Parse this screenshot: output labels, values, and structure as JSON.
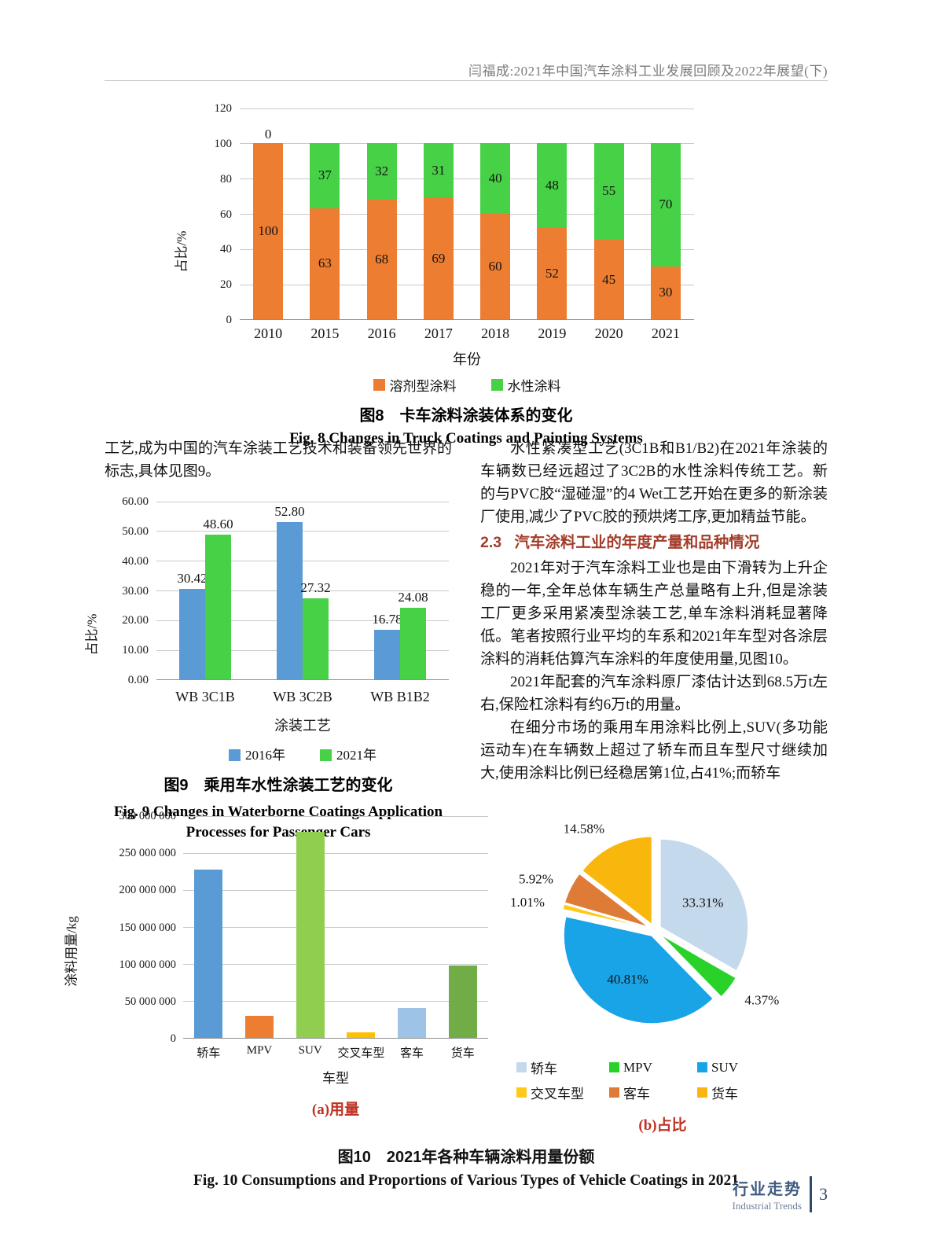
{
  "header": {
    "running_title": "闫福成:2021年中国汽车涂料工业发展回顾及2022年展望(下)"
  },
  "chart_data": [
    {
      "id": "fig8",
      "type": "bar",
      "stacked": true,
      "categories": [
        "2010",
        "2015",
        "2016",
        "2017",
        "2018",
        "2019",
        "2020",
        "2021"
      ],
      "series": [
        {
          "name": "溶剂型涂料",
          "color": "#ED7D31",
          "values": [
            100,
            63,
            68,
            69,
            60,
            52,
            45,
            30
          ]
        },
        {
          "name": "水性涂料",
          "color": "#47D147",
          "values": [
            0,
            37,
            32,
            31,
            40,
            48,
            55,
            70
          ]
        }
      ],
      "xlabel": "年份",
      "ylabel": "占比/%",
      "ylim": [
        0,
        120
      ],
      "ytick_step": 20,
      "grid": true,
      "legend_position": "bottom",
      "title_zh": "图8　卡车涂料涂装体系的变化",
      "title_en": "Fig. 8  Changes in Truck Coatings and Painting Systems"
    },
    {
      "id": "fig9",
      "type": "bar",
      "stacked": false,
      "categories": [
        "WB 3C1B",
        "WB 3C2B",
        "WB B1B2"
      ],
      "series": [
        {
          "name": "2016年",
          "color": "#5B9BD5",
          "values": [
            30.42,
            52.8,
            16.78
          ]
        },
        {
          "name": "2021年",
          "color": "#47D147",
          "values": [
            48.6,
            27.32,
            24.08
          ]
        }
      ],
      "xlabel": "涂装工艺",
      "ylabel": "占比/%",
      "ylim": [
        0,
        60
      ],
      "ytick_step": 10,
      "ytick_decimals": 2,
      "grid": true,
      "legend_position": "bottom",
      "title_zh": "图9　乘用车水性涂装工艺的变化",
      "title_en1": "Fig. 9  Changes in Waterborne Coatings Application",
      "title_en2": "Processes for Passenger Cars"
    },
    {
      "id": "fig10a",
      "type": "bar",
      "subtitle": "(a)用量",
      "categories": [
        "轿车",
        "MPV",
        "SUV",
        "交叉车型",
        "客车",
        "货车"
      ],
      "values": [
        227000000,
        30000000,
        278000000,
        7000000,
        40000000,
        98000000
      ],
      "colors": [
        "#5B9BD5",
        "#ED7D31",
        "#8FCE4F",
        "#FFC000",
        "#9DC3E6",
        "#70AD47"
      ],
      "xlabel": "车型",
      "ylabel": "涂料用量/kg",
      "ylim": [
        0,
        300000000
      ],
      "ytick_step": 50000000,
      "ytick_spaces": true,
      "grid": true
    },
    {
      "id": "fig10b",
      "type": "pie",
      "subtitle": "(b)占比",
      "labels": [
        "轿车",
        "MPV",
        "SUV",
        "交叉车型",
        "客车",
        "货车"
      ],
      "values": [
        33.31,
        4.37,
        40.81,
        1.01,
        5.92,
        14.58
      ],
      "colors": [
        "#C5D9ED",
        "#28D228",
        "#18A4E6",
        "#FFC91A",
        "#DE7B36",
        "#F9B60C"
      ],
      "legend_position": "bottom"
    }
  ],
  "fig10": {
    "caption_zh": "图10　2021年各种车辆涂料用量份额",
    "caption_en": "Fig. 10 Consumptions and Proportions of Various Types of Vehicle Coatings in 2021"
  },
  "body": {
    "left_paragraph": "工艺,成为中国的汽车涂装工艺技术和装备领先世界的标志,具体见图9。",
    "right_p1": "水性紧凑型工艺(3C1B和B1/B2)在2021年涂装的车辆数已经远超过了3C2B的水性涂料传统工艺。新的与PVC胶“湿碰湿”的4 Wet工艺开始在更多的新涂装厂使用,减少了PVC胶的预烘烤工序,更加精益节能。",
    "section_heading": "2.3   汽车涂料工业的年度产量和品种情况",
    "right_p2": "2021年对于汽车涂料工业也是由下滑转为上升企稳的一年,全年总体车辆生产总量略有上升,但是涂装工厂更多采用紧凑型涂装工艺,单车涂料消耗显著降低。笔者按照行业平均的车系和2021年车型对各涂层涂料的消耗估算汽车涂料的年度使用量,见图10。",
    "right_p3": "2021年配套的汽车涂料原厂漆估计达到68.5万t左右,保险杠涂料有约6万t的用量。",
    "right_p4": "在细分市场的乘用车用涂料比例上,SUV(多功能运动车)在车辆数上超过了轿车而且车型尺寸继续加大,使用涂料比例已经稳居第1位,占41%;而轿车"
  },
  "footer": {
    "section_zh": "行业走势",
    "section_en": "Industrial Trends",
    "page_number": "3"
  }
}
